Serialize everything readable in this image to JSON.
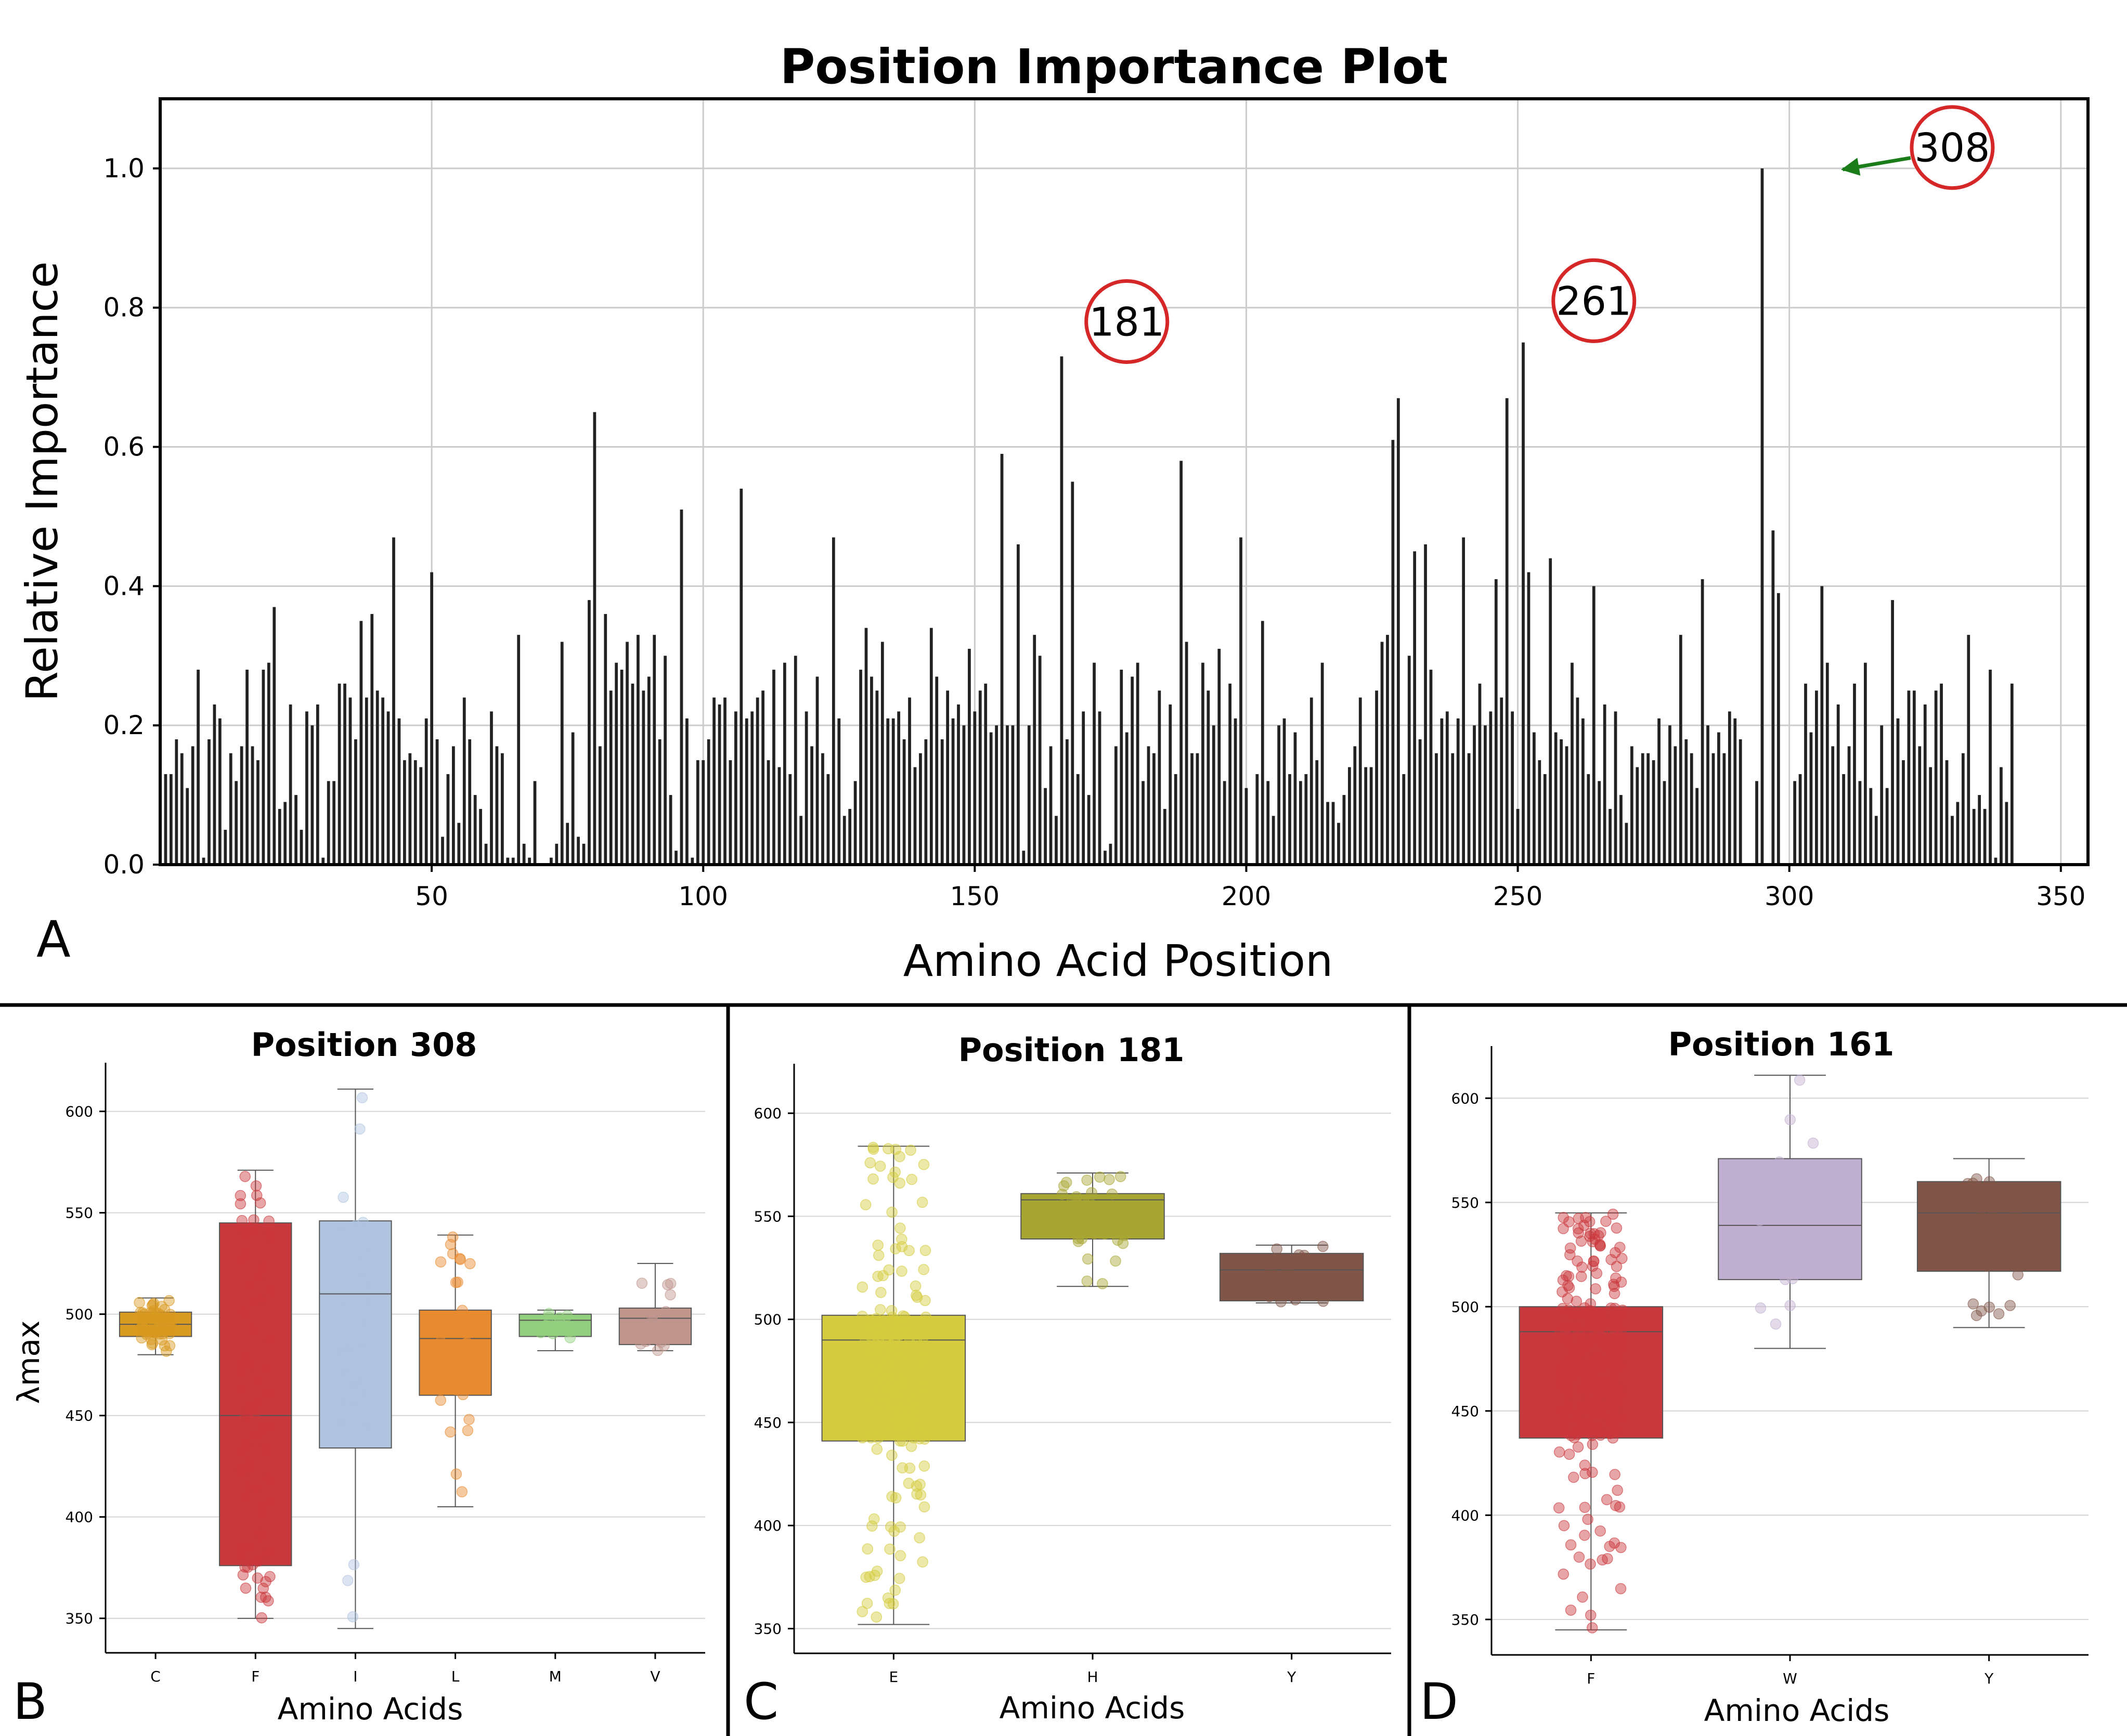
{
  "panel_a": {
    "letter": "A",
    "chart_data": {
      "type": "bar",
      "title": "Position Importance Plot",
      "xlabel": "Amino Acid Position",
      "ylabel": "Relative Importance",
      "xlim": [
        0,
        355
      ],
      "ylim": [
        0.0,
        1.1
      ],
      "xticks": [
        50,
        100,
        150,
        200,
        250,
        300,
        350
      ],
      "yticks": [
        "0.0",
        "0.2",
        "0.4",
        "0.6",
        "0.8",
        "1.0"
      ],
      "grid": true,
      "bar_color": "#222222",
      "x_start": 1,
      "values": [
        0.13,
        0.13,
        0.18,
        0.16,
        0.11,
        0.17,
        0.28,
        0.01,
        0.18,
        0.23,
        0.21,
        0.05,
        0.16,
        0.12,
        0.17,
        0.28,
        0.17,
        0.15,
        0.28,
        0.29,
        0.37,
        0.08,
        0.09,
        0.23,
        0.1,
        0.05,
        0.22,
        0.2,
        0.23,
        0.01,
        0.12,
        0.12,
        0.26,
        0.26,
        0.24,
        0.18,
        0.35,
        0.24,
        0.36,
        0.25,
        0.24,
        0.22,
        0.47,
        0.21,
        0.15,
        0.16,
        0.15,
        0.14,
        0.21,
        0.42,
        0.18,
        0.04,
        0.13,
        0.17,
        0.06,
        0.24,
        0.18,
        0.1,
        0.08,
        0.03,
        0.22,
        0.17,
        0.16,
        0.01,
        0.01,
        0.33,
        0.03,
        0.01,
        0.12,
        0.0,
        0.0,
        0.01,
        0.03,
        0.32,
        0.06,
        0.19,
        0.04,
        0.03,
        0.38,
        0.65,
        0.17,
        0.36,
        0.25,
        0.29,
        0.28,
        0.32,
        0.26,
        0.33,
        0.25,
        0.27,
        0.33,
        0.18,
        0.3,
        0.1,
        0.02,
        0.51,
        0.21,
        0.01,
        0.15,
        0.15,
        0.18,
        0.24,
        0.23,
        0.24,
        0.15,
        0.22,
        0.54,
        0.21,
        0.22,
        0.24,
        0.25,
        0.15,
        0.28,
        0.14,
        0.29,
        0.13,
        0.3,
        0.07,
        0.22,
        0.17,
        0.27,
        0.16,
        0.13,
        0.47,
        0.21,
        0.07,
        0.08,
        0.12,
        0.28,
        0.34,
        0.27,
        0.25,
        0.32,
        0.21,
        0.21,
        0.22,
        0.18,
        0.24,
        0.14,
        0.16,
        0.18,
        0.34,
        0.27,
        0.18,
        0.25,
        0.21,
        0.23,
        0.2,
        0.31,
        0.22,
        0.25,
        0.26,
        0.19,
        0.2,
        0.59,
        0.2,
        0.2,
        0.46,
        0.02,
        0.2,
        0.33,
        0.3,
        0.11,
        0.17,
        0.07,
        0.73,
        0.18,
        0.55,
        0.13,
        0.22,
        0.1,
        0.29,
        0.22,
        0.02,
        0.03,
        0.17,
        0.28,
        0.19,
        0.27,
        0.29,
        0.12,
        0.17,
        0.16,
        0.25,
        0.08,
        0.23,
        0.13,
        0.58,
        0.32,
        0.16,
        0.16,
        0.29,
        0.25,
        0.2,
        0.31,
        0.12,
        0.26,
        0.21,
        0.47,
        0.11,
        0.0,
        0.13,
        0.35,
        0.12,
        0.07,
        0.2,
        0.21,
        0.13,
        0.19,
        0.12,
        0.13,
        0.24,
        0.15,
        0.29,
        0.09,
        0.09,
        0.06,
        0.1,
        0.14,
        0.17,
        0.24,
        0.14,
        0.14,
        0.25,
        0.32,
        0.33,
        0.61,
        0.67,
        0.13,
        0.3,
        0.45,
        0.18,
        0.46,
        0.28,
        0.16,
        0.21,
        0.22,
        0.16,
        0.21,
        0.47,
        0.16,
        0.2,
        0.26,
        0.2,
        0.22,
        0.41,
        0.24,
        0.67,
        0.22,
        0.08,
        0.75,
        0.42,
        0.19,
        0.15,
        0.13,
        0.44,
        0.19,
        0.18,
        0.17,
        0.29,
        0.24,
        0.21,
        0.13,
        0.4,
        0.12,
        0.23,
        0.08,
        0.22,
        0.1,
        0.06,
        0.17,
        0.14,
        0.16,
        0.16,
        0.15,
        0.21,
        0.12,
        0.2,
        0.17,
        0.33,
        0.18,
        0.16,
        0.11,
        0.41,
        0.2,
        0.16,
        0.19,
        0.16,
        0.22,
        0.21,
        0.18,
        0.0,
        0.0,
        0.12,
        1.0,
        0.0,
        0.48,
        0.39,
        0.0,
        0.0,
        0.12,
        0.13,
        0.26,
        0.19,
        0.25,
        0.4,
        0.29,
        0.17,
        0.23,
        0.13,
        0.17,
        0.26,
        0.12,
        0.29,
        0.11,
        0.07,
        0.2,
        0.11,
        0.38,
        0.21,
        0.15,
        0.25,
        0.25,
        0.17,
        0.23,
        0.14,
        0.25,
        0.26,
        0.15,
        0.07,
        0.09,
        0.16,
        0.33,
        0.08,
        0.1,
        0.08,
        0.28,
        0.01,
        0.14,
        0.09,
        0.26
      ],
      "annotations": [
        {
          "label": "181",
          "x": 178,
          "y": 0.78
        },
        {
          "label": "261",
          "x": 264,
          "y": 0.81
        },
        {
          "label": "308",
          "x": 330,
          "y": 1.03,
          "arrow_to": {
            "x": 308.5,
            "y": 1.0
          },
          "arrow_color": "#1a7d1a"
        }
      ],
      "callout_ring_color": "#d62728"
    }
  },
  "panel_b": {
    "letter": "B",
    "chart_data": {
      "type": "box",
      "title": "Position 308",
      "xlabel": "Amino Acids",
      "ylabel": "λmax",
      "ylim": [
        333,
        624
      ],
      "yticks": [
        350,
        400,
        450,
        500,
        550,
        600
      ],
      "grid": true,
      "categories": [
        "C",
        "F",
        "I",
        "L",
        "M",
        "V"
      ],
      "boxes": [
        {
          "cat": "C",
          "color": "#d99a22",
          "q1": 489,
          "median": 495,
          "q3": 501,
          "wlo": 480,
          "whi": 508,
          "points": 60
        },
        {
          "cat": "F",
          "color": "#c9383c",
          "q1": 376,
          "median": 450,
          "q3": 545,
          "wlo": 350,
          "whi": 571,
          "points": 90
        },
        {
          "cat": "I",
          "color": "#b0c4e0",
          "q1": 434,
          "median": 510,
          "q3": 546,
          "wlo": 345,
          "whi": 611,
          "points": 30
        },
        {
          "cat": "L",
          "color": "#e88a2e",
          "q1": 460,
          "median": 488,
          "q3": 502,
          "wlo": 405,
          "whi": 539,
          "points": 60
        },
        {
          "cat": "M",
          "color": "#92d07f",
          "q1": 489,
          "median": 497,
          "q3": 500,
          "wlo": 482,
          "whi": 502,
          "points": 12
        },
        {
          "cat": "V",
          "color": "#bf958c",
          "q1": 485,
          "median": 498,
          "q3": 503,
          "wlo": 482,
          "whi": 525,
          "points": 14
        }
      ]
    }
  },
  "panel_c": {
    "letter": "C",
    "chart_data": {
      "type": "box",
      "title": "Position 181",
      "xlabel": "Amino Acids",
      "ylabel": "",
      "ylim": [
        338,
        624
      ],
      "yticks": [
        350,
        400,
        450,
        500,
        550,
        600
      ],
      "grid": true,
      "categories": [
        "E",
        "H",
        "Y"
      ],
      "boxes": [
        {
          "cat": "E",
          "color": "#d4cc3e",
          "q1": 441,
          "median": 490,
          "q3": 502,
          "wlo": 352,
          "whi": 584,
          "points": 260
        },
        {
          "cat": "H",
          "color": "#a8a632",
          "q1": 539,
          "median": 558,
          "q3": 561,
          "wlo": 516,
          "whi": 571,
          "points": 45
        },
        {
          "cat": "Y",
          "color": "#805547",
          "q1": 509,
          "median": 524,
          "q3": 532,
          "wlo": 508,
          "whi": 536,
          "points": 18
        }
      ]
    }
  },
  "panel_d": {
    "letter": "D",
    "chart_data": {
      "type": "box",
      "title": "Position 161",
      "xlabel": "Amino Acids",
      "ylabel": "",
      "ylim": [
        333,
        625
      ],
      "yticks": [
        350,
        400,
        450,
        500,
        550,
        600
      ],
      "grid": true,
      "categories": [
        "F",
        "W",
        "Y"
      ],
      "boxes": [
        {
          "cat": "F",
          "color": "#c9383c",
          "q1": 437,
          "median": 488,
          "q3": 500,
          "wlo": 345,
          "whi": 545,
          "points": 260
        },
        {
          "cat": "W",
          "color": "#c0afd1",
          "q1": 513,
          "median": 539,
          "q3": 571,
          "wlo": 480,
          "whi": 611,
          "points": 22
        },
        {
          "cat": "Y",
          "color": "#805547",
          "q1": 517,
          "median": 545,
          "q3": 560,
          "wlo": 490,
          "whi": 571,
          "points": 38
        }
      ]
    }
  }
}
